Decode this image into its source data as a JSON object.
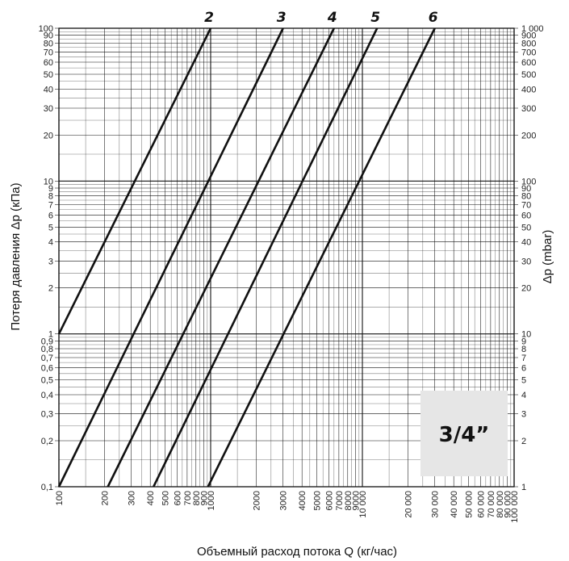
{
  "chart_data": {
    "type": "line",
    "xscale": "log",
    "yscale": "log",
    "xlim": [
      100,
      100000
    ],
    "ylim": [
      0.1,
      100
    ],
    "y2lim": [
      1,
      1000
    ],
    "xlabel": "Объемный расход потока Q (кг/час)",
    "ylabel": "Потеря давления Δp (кПа)",
    "y2label": "Δp (mbar)",
    "grid": true,
    "x_ticks": [
      {
        "v": 100,
        "label": "100"
      },
      {
        "v": 200,
        "label": "200"
      },
      {
        "v": 300,
        "label": "300"
      },
      {
        "v": 400,
        "label": "400"
      },
      {
        "v": 500,
        "label": "500"
      },
      {
        "v": 600,
        "label": "600"
      },
      {
        "v": 700,
        "label": "700"
      },
      {
        "v": 800,
        "label": "800"
      },
      {
        "v": 900,
        "label": "900"
      },
      {
        "v": 1000,
        "label": "1000"
      },
      {
        "v": 2000,
        "label": "2000"
      },
      {
        "v": 3000,
        "label": "3000"
      },
      {
        "v": 4000,
        "label": "4000"
      },
      {
        "v": 5000,
        "label": "5000"
      },
      {
        "v": 6000,
        "label": "6000"
      },
      {
        "v": 7000,
        "label": "7000"
      },
      {
        "v": 8000,
        "label": "8000"
      },
      {
        "v": 9000,
        "label": "9000"
      },
      {
        "v": 10000,
        "label": "10 000"
      },
      {
        "v": 20000,
        "label": "20 000"
      },
      {
        "v": 30000,
        "label": "30 000"
      },
      {
        "v": 40000,
        "label": "40 000"
      },
      {
        "v": 50000,
        "label": "50 000"
      },
      {
        "v": 60000,
        "label": "60 000"
      },
      {
        "v": 70000,
        "label": "70 000"
      },
      {
        "v": 80000,
        "label": "80 000"
      },
      {
        "v": 90000,
        "label": "90 000"
      },
      {
        "v": 100000,
        "label": "100 000"
      }
    ],
    "y_ticks": [
      {
        "v": 0.1,
        "label": "0,1"
      },
      {
        "v": 0.2,
        "label": "0,2"
      },
      {
        "v": 0.3,
        "label": "0,3"
      },
      {
        "v": 0.4,
        "label": "0,4"
      },
      {
        "v": 0.5,
        "label": "0,5"
      },
      {
        "v": 0.6,
        "label": "0,6"
      },
      {
        "v": 0.7,
        "label": "0,7"
      },
      {
        "v": 0.8,
        "label": "0,8"
      },
      {
        "v": 0.9,
        "label": "0,9"
      },
      {
        "v": 1,
        "label": "1"
      },
      {
        "v": 2,
        "label": "2"
      },
      {
        "v": 3,
        "label": "3"
      },
      {
        "v": 4,
        "label": "4"
      },
      {
        "v": 5,
        "label": "5"
      },
      {
        "v": 6,
        "label": "6"
      },
      {
        "v": 7,
        "label": "7"
      },
      {
        "v": 8,
        "label": "8"
      },
      {
        "v": 9,
        "label": "9"
      },
      {
        "v": 10,
        "label": "10"
      },
      {
        "v": 20,
        "label": "20"
      },
      {
        "v": 30,
        "label": "30"
      },
      {
        "v": 40,
        "label": "40"
      },
      {
        "v": 50,
        "label": "50"
      },
      {
        "v": 60,
        "label": "60"
      },
      {
        "v": 70,
        "label": "70"
      },
      {
        "v": 80,
        "label": "80"
      },
      {
        "v": 90,
        "label": "90"
      },
      {
        "v": 100,
        "label": "100"
      }
    ],
    "y2_ticks": [
      {
        "v": 1,
        "label": "1"
      },
      {
        "v": 2,
        "label": "2"
      },
      {
        "v": 3,
        "label": "3"
      },
      {
        "v": 4,
        "label": "4"
      },
      {
        "v": 5,
        "label": "5"
      },
      {
        "v": 6,
        "label": "6"
      },
      {
        "v": 7,
        "label": "7"
      },
      {
        "v": 8,
        "label": "8"
      },
      {
        "v": 9,
        "label": "9"
      },
      {
        "v": 10,
        "label": "10"
      },
      {
        "v": 20,
        "label": "20"
      },
      {
        "v": 30,
        "label": "30"
      },
      {
        "v": 40,
        "label": "40"
      },
      {
        "v": 50,
        "label": "50"
      },
      {
        "v": 60,
        "label": "60"
      },
      {
        "v": 70,
        "label": "70"
      },
      {
        "v": 80,
        "label": "80"
      },
      {
        "v": 90,
        "label": "90"
      },
      {
        "v": 100,
        "label": "100"
      },
      {
        "v": 200,
        "label": "200"
      },
      {
        "v": 300,
        "label": "300"
      },
      {
        "v": 400,
        "label": "400"
      },
      {
        "v": 500,
        "label": "500"
      },
      {
        "v": 600,
        "label": "600"
      },
      {
        "v": 700,
        "label": "700"
      },
      {
        "v": 800,
        "label": "800"
      },
      {
        "v": 900,
        "label": "900"
      },
      {
        "v": 1000,
        "label": "1 000"
      }
    ],
    "series": [
      {
        "name": "2",
        "x": [
          100,
          1000
        ],
        "y": [
          1,
          100
        ]
      },
      {
        "name": "3",
        "x": [
          100,
          3000
        ],
        "y": [
          0.1,
          100
        ]
      },
      {
        "name": "4",
        "x": [
          210,
          6500
        ],
        "y": [
          0.1,
          100
        ]
      },
      {
        "name": "5",
        "x": [
          420,
          12500
        ],
        "y": [
          0.1,
          100
        ]
      },
      {
        "name": "6",
        "x": [
          960,
          30000
        ],
        "y": [
          0.1,
          100
        ]
      }
    ],
    "annotation": "3/4”",
    "colors": {
      "line": "#111111",
      "badge": "#e6e6e6"
    }
  }
}
